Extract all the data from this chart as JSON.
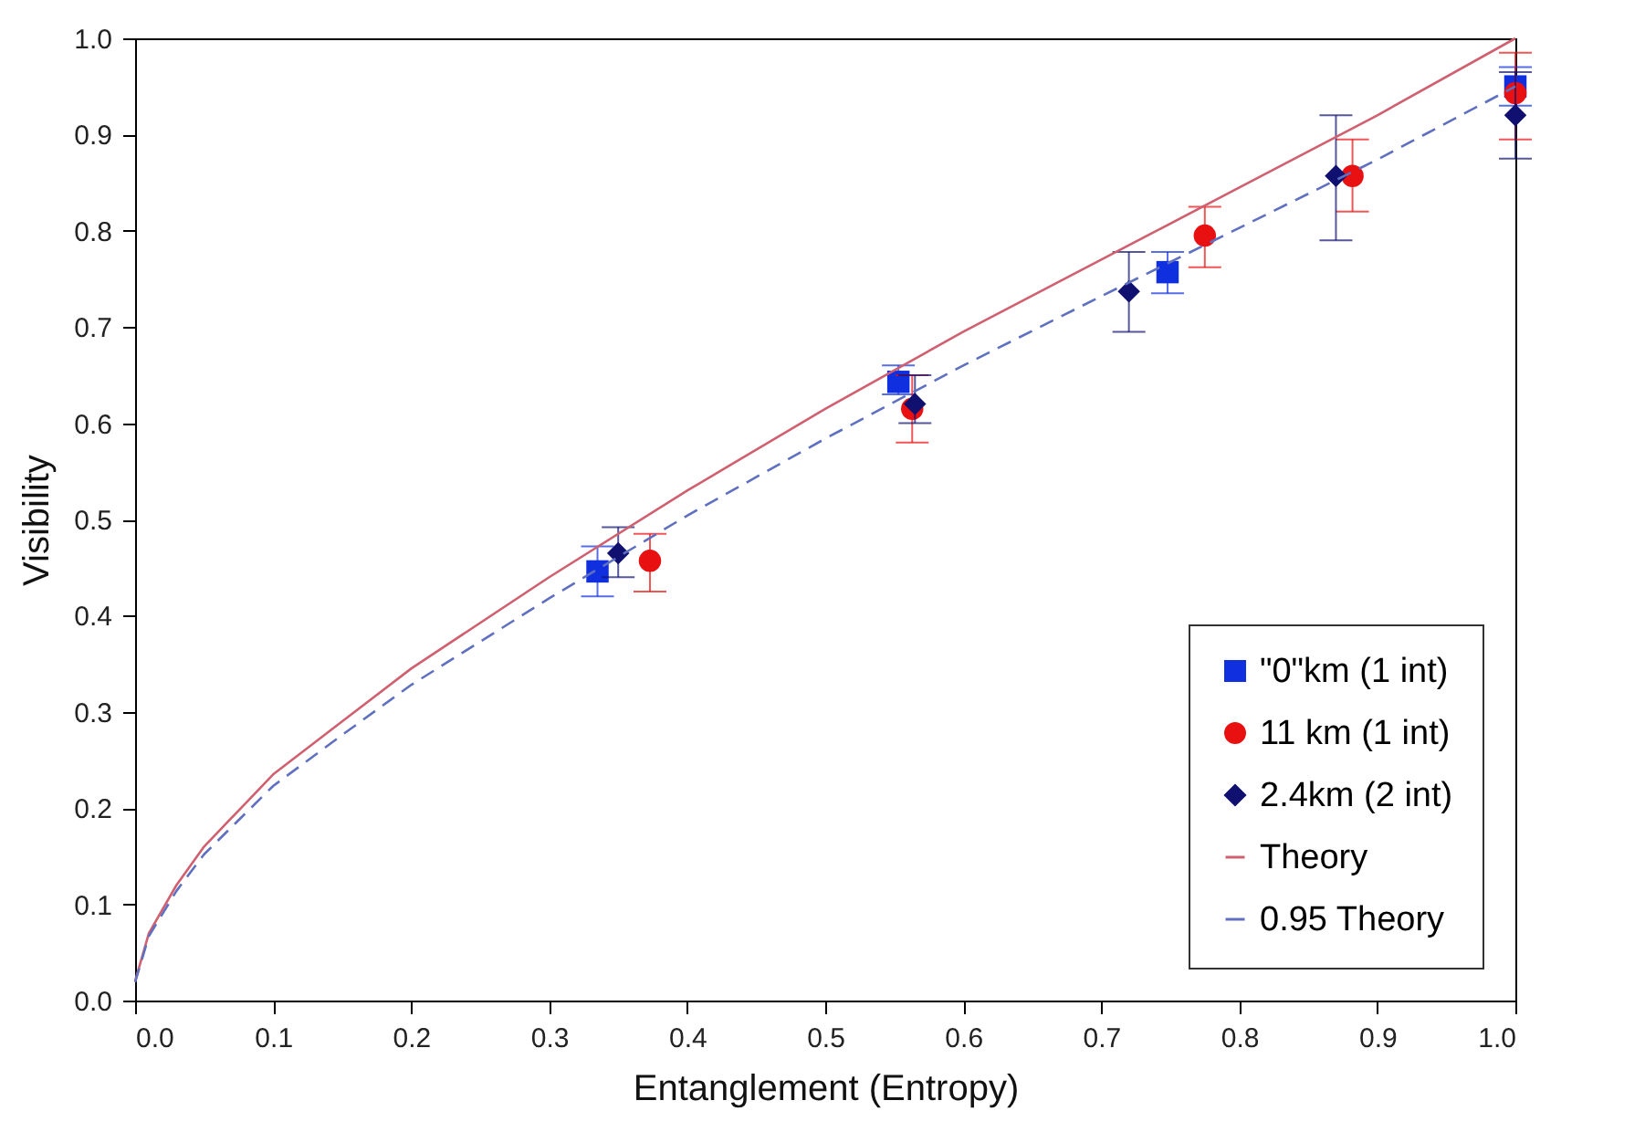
{
  "chart_data": {
    "type": "scatter",
    "xlabel": "Entanglement (Entropy)",
    "ylabel": "Visibility",
    "xlim": [
      0,
      1
    ],
    "ylim": [
      0,
      1
    ],
    "xticks": [
      {
        "value": 0,
        "label": "0.0"
      },
      0.1,
      0.2,
      0.3,
      0.4,
      0.5,
      0.6,
      0.7,
      0.8,
      0.9,
      {
        "value": 1,
        "label": "1.0"
      }
    ],
    "yticks": [
      {
        "value": 0,
        "label": "0.0"
      },
      0.1,
      0.2,
      0.3,
      0.4,
      0.5,
      0.6,
      0.7,
      0.8,
      0.9,
      {
        "value": 1,
        "label": "1.0"
      }
    ],
    "grid": false,
    "legend": "bottom right",
    "series": [
      {
        "name": "\"0\"km (1 int)",
        "marker": "square",
        "color": "#1030e0",
        "x": [
          0.335,
          0.553,
          0.748,
          1.0
        ],
        "values": [
          0.446,
          0.643,
          0.757,
          0.95
        ],
        "errors": [
          [
            0.42,
            0.472
          ],
          [
            0.63,
            0.66
          ],
          [
            0.735,
            0.778
          ],
          [
            0.93,
            0.97
          ]
        ]
      },
      {
        "name": "11 km (1 int)",
        "marker": "circle",
        "color": "#e81010",
        "x": [
          0.373,
          0.563,
          0.775,
          0.882,
          1.0
        ],
        "values": [
          0.457,
          0.615,
          0.795,
          0.857,
          0.943
        ],
        "errors": [
          [
            0.425,
            0.485
          ],
          [
            0.58,
            0.65
          ],
          [
            0.762,
            0.825
          ],
          [
            0.82,
            0.895
          ],
          [
            0.895,
            0.985
          ]
        ]
      },
      {
        "name": "2.4km (2 int)",
        "marker": "diamond",
        "color": "#101070",
        "x": [
          0.35,
          0.565,
          0.72,
          0.87,
          1.0
        ],
        "values": [
          0.465,
          0.62,
          0.737,
          0.857,
          0.92
        ],
        "errors": [
          [
            0.44,
            0.492
          ],
          [
            0.6,
            0.65
          ],
          [
            0.695,
            0.778
          ],
          [
            0.79,
            0.92
          ],
          [
            0.875,
            0.965
          ]
        ]
      },
      {
        "name": "Theory",
        "type": "line",
        "line_style": "solid",
        "color": "#d06070",
        "x": [
          0,
          0.01,
          0.03,
          0.05,
          0.1,
          0.15,
          0.2,
          0.3,
          0.4,
          0.5,
          0.6,
          0.7,
          0.8,
          0.9,
          1.0
        ],
        "values": [
          0.02,
          0.07,
          0.12,
          0.16,
          0.235,
          0.29,
          0.345,
          0.44,
          0.53,
          0.615,
          0.695,
          0.77,
          0.845,
          0.92,
          1.0
        ]
      },
      {
        "name": "0.95 Theory",
        "type": "line",
        "line_style": "dashed",
        "color": "#6070c0",
        "x": [
          0,
          0.01,
          0.03,
          0.05,
          0.1,
          0.15,
          0.2,
          0.3,
          0.4,
          0.5,
          0.6,
          0.7,
          0.8,
          0.9,
          1.0
        ],
        "values": [
          0.019,
          0.067,
          0.114,
          0.152,
          0.223,
          0.276,
          0.328,
          0.418,
          0.504,
          0.584,
          0.66,
          0.732,
          0.803,
          0.874,
          0.95
        ]
      }
    ]
  }
}
